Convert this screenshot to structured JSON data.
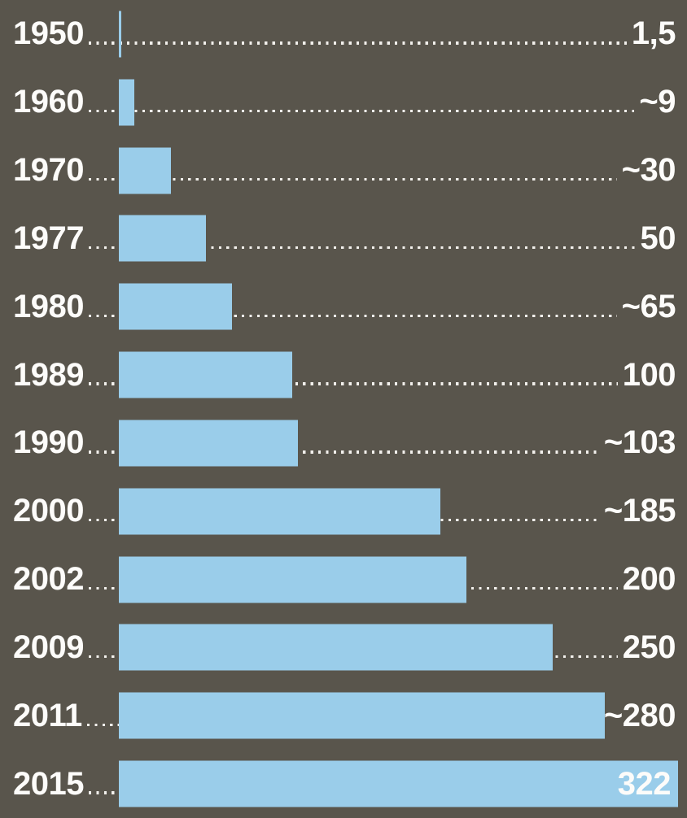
{
  "chart_data": {
    "type": "bar",
    "orientation": "horizontal",
    "title": "",
    "xlabel": "",
    "ylabel": "",
    "xlim": [
      0,
      322
    ],
    "grid": false,
    "legend": false,
    "categories": [
      "1950",
      "1960",
      "1970",
      "1977",
      "1980",
      "1989",
      "1990",
      "2000",
      "2002",
      "2009",
      "2011",
      "2015"
    ],
    "values": [
      1.5,
      9,
      30,
      50,
      65,
      100,
      103,
      185,
      200,
      250,
      280,
      322
    ],
    "value_labels": [
      "1,5",
      "~9",
      "~30",
      "50",
      "~65",
      "100",
      "~103",
      "~185",
      "200",
      "250",
      "~280",
      "322"
    ],
    "value_label_inside_bar": [
      false,
      false,
      false,
      false,
      false,
      false,
      false,
      false,
      false,
      false,
      false,
      true
    ],
    "colors": {
      "background": "#59554c",
      "bar": "#9acdea",
      "text": "#fdfcfa",
      "leader_dots": "#f2f0ec"
    }
  }
}
